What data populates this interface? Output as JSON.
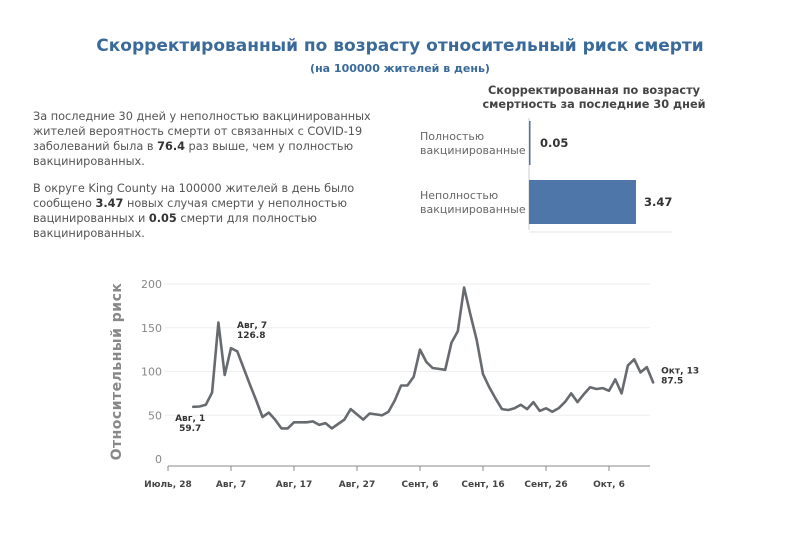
{
  "title": "Скорректированный по возрасту относительный риск смерти",
  "subtitle": "(на 100000 жителей в день)",
  "summary": {
    "p1_before": "За последние 30 дней у неполностью вакцинированных жителей вероятность смерти от связанных с COVID-19 заболеваний была в ",
    "p1_ratio": "76.4",
    "p1_after": " раз выше, чем у полностью вакцинированных.",
    "p2_before": "В округе King County на 100000 жителей в день было сообщено ",
    "p2_unvax": "3.47",
    "p2_middle": " новых случая смерти у неполностью вацинированных и ",
    "p2_vax": "0.05",
    "p2_after": " смерти для полностью вакцинированных."
  },
  "colors": {
    "title": "#3a6a9a",
    "bar": "#4e76a8",
    "line": "#676a6e",
    "grid": "#eeeeee"
  },
  "chart_data": [
    {
      "type": "bar",
      "orientation": "horizontal",
      "title": "Скорректированная по возрасту смертность за последние 30 дней",
      "categories": [
        "Полностью вакцинированные",
        "Неполностью вакцинированные"
      ],
      "category_lines": [
        [
          "Полностью",
          "вакцинированные"
        ],
        [
          "Неполностью",
          "вакцинированные"
        ]
      ],
      "values": [
        0.05,
        3.47
      ],
      "value_labels": [
        "0.05",
        "3.47"
      ],
      "xlim": [
        0,
        3.47
      ]
    },
    {
      "type": "line",
      "title": "",
      "ylabel": "Относительный риск",
      "xlabel": "",
      "ylim": [
        0,
        200
      ],
      "yticks": [
        0,
        50,
        100,
        150,
        200
      ],
      "x_start": "Авг, 1",
      "x_ticks": [
        {
          "label": "Июль, 28",
          "day": -4
        },
        {
          "label": "Авг, 7",
          "day": 6
        },
        {
          "label": "Авг, 17",
          "day": 16
        },
        {
          "label": "Авг, 27",
          "day": 26
        },
        {
          "label": "Сент, 6",
          "day": 36
        },
        {
          "label": "Сент, 16",
          "day": 46
        },
        {
          "label": "Сент, 26",
          "day": 56
        },
        {
          "label": "Окт, 6",
          "day": 66
        }
      ],
      "values": [
        59.7,
        60,
        62,
        76,
        156,
        96,
        126.8,
        123,
        104,
        85,
        67,
        48,
        53,
        45,
        35,
        35,
        42,
        42,
        42,
        43,
        39,
        41,
        35,
        40,
        45,
        57,
        51,
        45,
        52,
        51,
        50,
        54,
        67,
        84,
        84,
        94,
        125,
        111,
        104,
        103,
        102,
        133,
        146,
        196,
        165,
        136,
        97,
        82,
        69,
        57,
        56,
        58,
        62,
        57,
        65,
        55,
        58,
        54,
        58,
        65,
        75,
        65,
        74,
        82,
        80,
        81,
        78,
        91,
        75,
        107,
        114,
        99,
        105,
        87.5
      ],
      "annotations": [
        {
          "index": 0,
          "lines": [
            "Авг, 1",
            "59.7"
          ]
        },
        {
          "index": 6,
          "lines": [
            "Авг, 7",
            "126.8"
          ]
        },
        {
          "index": 73,
          "lines": [
            "Окт, 13",
            "87.5"
          ]
        }
      ]
    }
  ]
}
